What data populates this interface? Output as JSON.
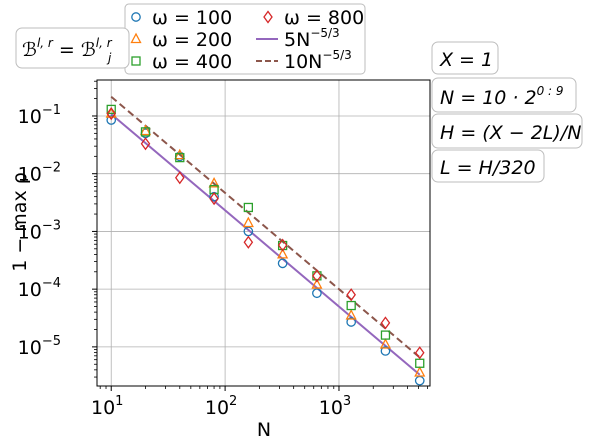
{
  "chart_data": {
    "type": "scatter",
    "xlabel": "N",
    "ylabel": "1 − max ρ",
    "xscale": "log",
    "yscale": "log",
    "xlim": [
      7.5,
      6300
    ],
    "ylim": [
      2.1e-06,
      0.42
    ],
    "grid": true,
    "legend_placement": "top",
    "x_ticks": [
      {
        "value": 10,
        "label": "10",
        "exp": "1"
      },
      {
        "value": 100,
        "label": "10",
        "exp": "2"
      },
      {
        "value": 1000,
        "label": "10",
        "exp": "3"
      }
    ],
    "y_ticks": [
      {
        "value": 1e-05,
        "label": "10",
        "exp": "−5"
      },
      {
        "value": 0.0001,
        "label": "10",
        "exp": "−4"
      },
      {
        "value": 0.001,
        "label": "10",
        "exp": "−3"
      },
      {
        "value": 0.01,
        "label": "10",
        "exp": "−2"
      },
      {
        "value": 0.1,
        "label": "10",
        "exp": "−1"
      }
    ],
    "x": [
      10,
      20,
      40,
      80,
      160,
      320,
      640,
      1280,
      2560,
      5120
    ],
    "series": [
      {
        "name": "ω = 100",
        "marker": "circle",
        "color": "#1f77b4",
        "values": [
          0.085,
          0.05,
          0.02,
          0.004,
          0.001,
          0.00028,
          8.5e-05,
          2.7e-05,
          8.5e-06,
          2.6e-06
        ]
      },
      {
        "name": "ω = 200",
        "marker": "triangle",
        "color": "#ff7f0e",
        "values": [
          0.11,
          0.055,
          0.021,
          0.0068,
          0.0014,
          0.0004,
          0.00012,
          3.5e-05,
          1.1e-05,
          3.6e-06
        ]
      },
      {
        "name": "ω = 400",
        "marker": "square",
        "color": "#2ca02c",
        "values": [
          0.13,
          0.053,
          0.019,
          0.0053,
          0.0026,
          0.00057,
          0.00017,
          5.2e-05,
          1.6e-05,
          5.2e-06
        ]
      },
      {
        "name": "ω = 800",
        "marker": "diamond",
        "color": "#d62728",
        "values": [
          0.11,
          0.033,
          0.0085,
          0.0037,
          0.00065,
          0.00058,
          0.00017,
          8e-05,
          2.6e-05,
          7.9e-06
        ]
      }
    ],
    "lines": [
      {
        "name": "5N",
        "exp": "−5/3",
        "coef": 5,
        "power": -1.6667,
        "color": "#9467bd",
        "style": "solid"
      },
      {
        "name": "10N",
        "exp": "−5/3",
        "coef": 10,
        "power": -1.6667,
        "color": "#8c564b",
        "style": "dashed"
      }
    ],
    "annotations": {
      "bc": {
        "lhs": "ℬ",
        "lhs_sup": "l, r",
        "eq": " = ",
        "rhs": "ℬ",
        "rhs_sub": "j",
        "rhs_sup": "l, r"
      },
      "params": [
        {
          "parts": [
            "X = 1"
          ]
        },
        {
          "parts": [
            "N = 10 · 2",
            "0 : 9"
          ]
        },
        {
          "parts": [
            "H = (X − 2L)/N"
          ]
        },
        {
          "parts": [
            "L = H/320"
          ]
        }
      ]
    }
  }
}
